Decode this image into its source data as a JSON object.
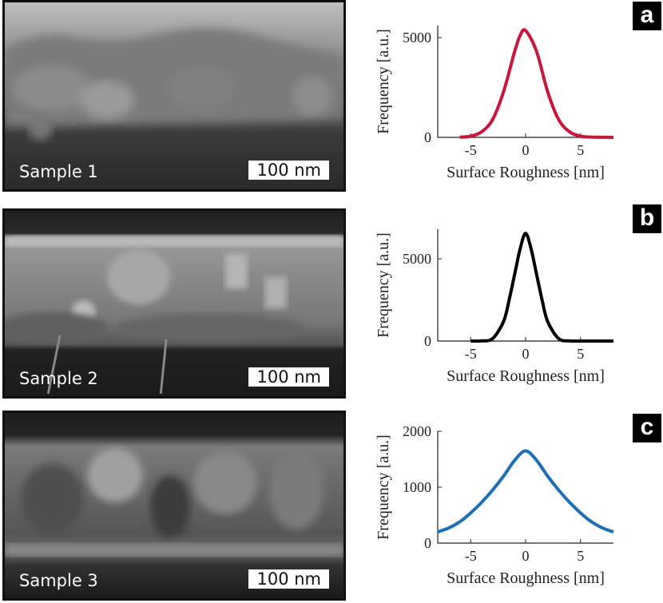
{
  "panels": [
    {
      "badge": "a",
      "sample_label": "Sample 1",
      "scale_label": "100 nm"
    },
    {
      "badge": "b",
      "sample_label": "Sample 2",
      "scale_label": "100 nm"
    },
    {
      "badge": "c",
      "sample_label": "Sample 3",
      "scale_label": "100 nm"
    }
  ],
  "chart_data": [
    {
      "type": "line",
      "xlabel": "Surface Roughness [nm]",
      "ylabel": "Frequency  [a.u.]",
      "xlim": [
        -8,
        8
      ],
      "ylim": [
        0,
        5600
      ],
      "x_ticks": [
        -5,
        0,
        5
      ],
      "y_ticks": [
        0,
        5000
      ],
      "grid": false,
      "color": "#c8173d",
      "series": [
        {
          "x": [
            -6,
            -5,
            -4,
            -3,
            -2,
            -1,
            -0.5,
            0,
            1,
            2,
            3,
            4,
            5,
            6,
            7,
            8
          ],
          "values": [
            10,
            60,
            280,
            900,
            2300,
            4300,
            5100,
            5350,
            4300,
            2300,
            900,
            280,
            60,
            15,
            5,
            0
          ]
        }
      ]
    },
    {
      "type": "line",
      "xlabel": "Surface Roughness [nm]",
      "ylabel": "Frequency  [a.u.]",
      "xlim": [
        -8,
        8
      ],
      "ylim": [
        0,
        6800
      ],
      "x_ticks": [
        -5,
        0,
        5
      ],
      "y_ticks": [
        0,
        5000
      ],
      "grid": false,
      "color": "#000000",
      "series": [
        {
          "x": [
            -5,
            -4,
            -3,
            -2,
            -1.5,
            -1,
            -0.5,
            0,
            0.5,
            1,
            1.5,
            2,
            3,
            4,
            5,
            6,
            7,
            8
          ],
          "values": [
            0,
            10,
            150,
            1200,
            2500,
            4050,
            5600,
            6550,
            5600,
            4050,
            2500,
            1200,
            150,
            10,
            0,
            0,
            0,
            0
          ]
        }
      ]
    },
    {
      "type": "line",
      "xlabel": "Surface Roughness [nm]",
      "ylabel": "Frequency  [a.u.]",
      "xlim": [
        -8,
        8
      ],
      "ylim": [
        0,
        2000
      ],
      "x_ticks": [
        -5,
        0,
        5
      ],
      "y_ticks": [
        0,
        1000,
        2000
      ],
      "grid": false,
      "color": "#1a6fb8",
      "series": [
        {
          "x": [
            -8,
            -7,
            -6,
            -5,
            -4,
            -3,
            -2,
            -1,
            0,
            1,
            2,
            3,
            4,
            5,
            6,
            7,
            8
          ],
          "values": [
            200,
            270,
            380,
            540,
            730,
            950,
            1200,
            1480,
            1650,
            1480,
            1200,
            950,
            730,
            540,
            380,
            270,
            200
          ]
        }
      ]
    }
  ]
}
